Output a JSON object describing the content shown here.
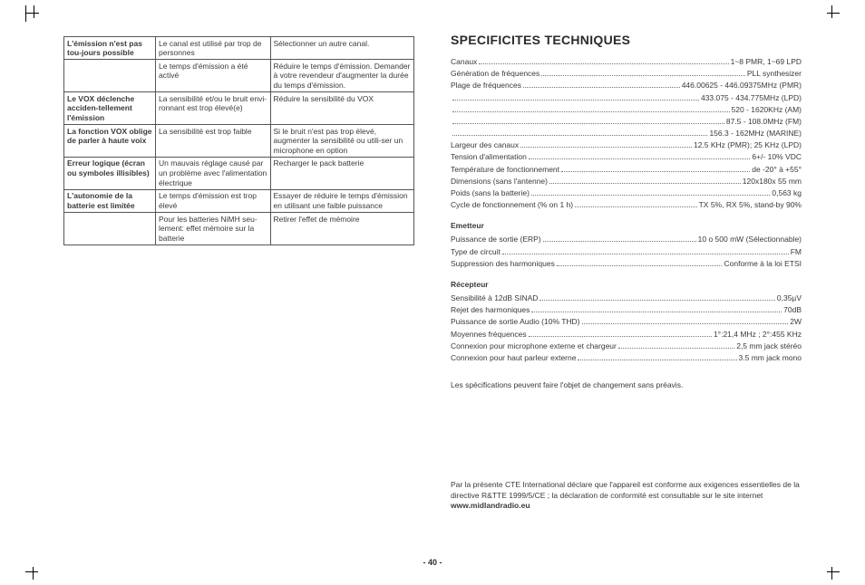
{
  "page_number": "- 40 -",
  "left": {
    "rows": [
      {
        "problem": "L'émission n'est pas tou-jours possible",
        "cause": "Le canal est utilisé par trop de personnes",
        "solution": "Sélectionner un autre canal."
      },
      {
        "problem": "",
        "cause": "Le temps d'émission a été activé",
        "solution": "Réduire le temps d'émission. Demander à votre revendeur d'augmenter la durée du temps d'émission."
      },
      {
        "problem": "Le VOX déclenche acciden-tellement l'émission",
        "cause": "La sensibilité et/ou le bruit envi-ronnant est trop élevé(e)",
        "solution": "Réduire la sensibilité du VOX"
      },
      {
        "problem": "La fonction VOX oblige de parler à haute voix",
        "cause": "La sensibilité est trop faible",
        "solution": "Si le bruit n'est pas trop élevé, augmenter la sensibilité ou utili-ser un microphone en option"
      },
      {
        "problem": "Erreur logique (écran ou symboles illisibles)",
        "cause": "Un mauvais réglage causé par un problème avec l'alimentation électrique",
        "solution": "Recharger le pack batterie"
      },
      {
        "problem": "L'autonomie de la batterie est limitée",
        "cause": "Le temps d'émission est trop élevé",
        "solution": "Essayer de réduire le temps d'émission en utilisant une faible puissance"
      },
      {
        "problem": "",
        "cause": "Pour les batteries NiMH seu-lement: effet mémoire sur la batterie",
        "solution": "Retirer l'effet de mémoire"
      }
    ]
  },
  "right": {
    "title": "SPECIFICITES TECHNIQUES",
    "general": [
      {
        "label": "Canaux",
        "value": "1~8 PMR, 1~69 LPD"
      },
      {
        "label": "Génération de fréquences",
        "value": "PLL synthesizer"
      },
      {
        "label": "Plage de fréquences",
        "value": "446.00625 - 446.09375MHz (PMR)"
      },
      {
        "label": "",
        "value": "433.075 - 434.775MHz (LPD)"
      },
      {
        "label": "",
        "value": "520 - 1620KHz (AM)"
      },
      {
        "label": "",
        "value": "87.5 - 108.0MHz (FM)"
      },
      {
        "label": "",
        "value": "156.3 - 162MHz (MARINE)"
      },
      {
        "label": "Largeur des canaux",
        "value": "12.5 KHz (PMR); 25 KHz (LPD)"
      },
      {
        "label": "Tension d'alimentation",
        "value": "6+/- 10% VDC"
      },
      {
        "label": "Température de fonctionnement",
        "value": "de -20° à +55°"
      },
      {
        "label": "Dimensions (sans l'antenne)",
        "value": "120x180x 55 mm"
      },
      {
        "label": "Poids (sans la batterie)",
        "value": "0,563 kg"
      },
      {
        "label": "Cycle de fonctionnement (% on 1 h)",
        "value": "TX 5%, RX 5%, stand-by 90%"
      }
    ],
    "emitter_title": "Emetteur",
    "emitter": [
      {
        "label": "Puissance de sortie (ERP)",
        "value": "10 o 500 mW (Sélectionnable)"
      },
      {
        "label": "Type de circuit",
        "value": "FM"
      },
      {
        "label": "Suppression des harmoniques",
        "value": "Conforme à la loi ETSI"
      }
    ],
    "receiver_title": "Récepteur",
    "receiver": [
      {
        "label": "Sensibilité à 12dB SINAD",
        "value": "0,35µV"
      },
      {
        "label": "Rejet des harmoniques",
        "value": "70dB"
      },
      {
        "label": "Puissance de sortie Audio (10% THD)",
        "value": "2W"
      },
      {
        "label": "Moyennes fréquences",
        "value": "1°:21,4 MHz ; 2°:455 KHz"
      },
      {
        "label": "Connexion pour microphone externe et chargeur",
        "value": "2,5 mm jack stéréo"
      },
      {
        "label": "Connexion pour haut parleur externe",
        "value": "3.5 mm jack mono"
      }
    ],
    "notice": "Les spécifications peuvent faire l'objet de changement sans préavis.",
    "declaration_1": "Par la présente CTE International déclare que l'appareil est conforme aux exigences essentielles de la directive R&TTE 1999/5/CE ; la déclaration de conformité est consultable sur le site internet ",
    "declaration_site": "www.midlandradio.eu"
  }
}
